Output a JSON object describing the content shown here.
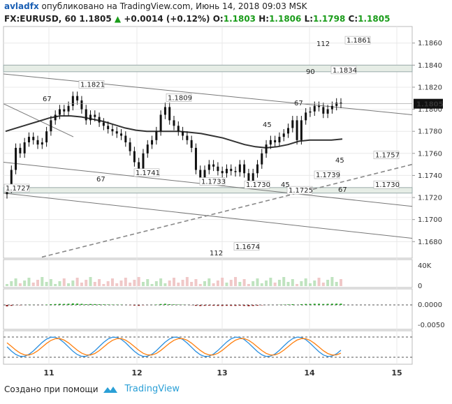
{
  "header": {
    "author": "avladfx",
    "published_text": "опубликовано на TradingView.com, Июнь 14, 2018 09:03 MSK",
    "symbol": "FX:EURUSD, 60",
    "last": "1.1805",
    "change_arrow": "▲",
    "change": "+0.0014 (+0.12%)",
    "o_label": "O:",
    "o_value": "1.1803",
    "h_label": "H:",
    "h_value": "1.1806",
    "l_label": "L:",
    "l_value": "1.1798",
    "c_label": "C:",
    "c_value": "1.1805"
  },
  "footer": {
    "created_text": "Создано при помощи",
    "brand": "TradingView"
  },
  "colors": {
    "up": "#1a9c1a",
    "down": "#8b1a1a",
    "candle": "#111111",
    "ma": "#333333",
    "grid": "#e8e8e8",
    "price_tag": "#111111",
    "band": "#e6ede6",
    "osc_blue": "#2a8fe0",
    "osc_orange": "#ff7f0e"
  },
  "chart_data": {
    "type": "candlestick",
    "symbol": "FX:EURUSD",
    "interval": "60",
    "x_labels": [
      "11",
      "12",
      "13",
      "14",
      "15"
    ],
    "price_axis": {
      "ticks": [
        "1.1860",
        "1.1840",
        "1.1820",
        "1.1800",
        "1.1780",
        "1.1760",
        "1.1740",
        "1.1720",
        "1.1700",
        "1.1680"
      ],
      "range": [
        1.1665,
        1.1875
      ],
      "last_price": "1.1805"
    },
    "close_series": [
      1.1728,
      1.1745,
      1.1765,
      1.176,
      1.177,
      1.1775,
      1.1772,
      1.1768,
      1.177,
      1.178,
      1.179,
      1.1795,
      1.18,
      1.1798,
      1.1803,
      1.1812,
      1.1808,
      1.18,
      1.179,
      1.1795,
      1.1793,
      1.1788,
      1.1785,
      1.1782,
      1.178,
      1.1778,
      1.1776,
      1.177,
      1.1762,
      1.1752,
      1.1745,
      1.176,
      1.1768,
      1.1772,
      1.178,
      1.1795,
      1.1802,
      1.179,
      1.1785,
      1.178,
      1.1776,
      1.1772,
      1.1765,
      1.1745,
      1.1738,
      1.1745,
      1.175,
      1.1748,
      1.1744,
      1.1742,
      1.1746,
      1.1744,
      1.1743,
      1.175,
      1.1742,
      1.1733,
      1.1742,
      1.175,
      1.176,
      1.1768,
      1.1772,
      1.177,
      1.1775,
      1.1778,
      1.1783,
      1.179,
      1.1772,
      1.179,
      1.1797,
      1.1798,
      1.1803,
      1.1802,
      1.1796,
      1.18,
      1.1803,
      1.1806,
      1.1805
    ],
    "ma_series": [
      1.178,
      1.1783,
      1.1786,
      1.1789,
      1.1792,
      1.1794,
      1.1794,
      1.1793,
      1.1791,
      1.1789,
      1.1786,
      1.1783,
      1.1781,
      1.178,
      1.178,
      1.178,
      1.178,
      1.1779,
      1.1778,
      1.1776,
      1.1774,
      1.1771,
      1.1768,
      1.1766,
      1.1765,
      1.1766,
      1.1768,
      1.1771,
      1.1772,
      1.1772,
      1.1772,
      1.1773
    ],
    "annotations": [
      {
        "text": "1.1821",
        "price": 1.1821,
        "kind": "high"
      },
      {
        "text": "1.1809",
        "price": 1.1809,
        "kind": "high"
      },
      {
        "text": "1.1741",
        "price": 1.1741,
        "kind": "low"
      },
      {
        "text": "1.1733",
        "price": 1.1733,
        "kind": "low"
      },
      {
        "text": "1.1730",
        "price": 1.173,
        "kind": "low"
      },
      {
        "text": "1.1727",
        "price": 1.1727,
        "kind": "low"
      },
      {
        "text": "1.1725",
        "price": 1.1725,
        "kind": "low"
      },
      {
        "text": "1.1739",
        "price": 1.1739,
        "kind": "level"
      },
      {
        "text": "1.1757",
        "price": 1.1757,
        "kind": "level"
      },
      {
        "text": "1.1730",
        "price": 1.173,
        "kind": "level"
      },
      {
        "text": "1.1674",
        "price": 1.1674,
        "kind": "level"
      },
      {
        "text": "1.1834",
        "price": 1.1834,
        "kind": "level"
      },
      {
        "text": "1.1861",
        "price": 1.1861,
        "kind": "level"
      }
    ],
    "fib_labels": [
      "67",
      "67",
      "45",
      "67",
      "45",
      "45",
      "67",
      "112",
      "90",
      "112"
    ],
    "volume": {
      "axis_ticks": [
        "40K",
        "0"
      ]
    },
    "macd": {
      "axis_ticks": [
        "0.0000",
        "-0.0050"
      ]
    }
  }
}
